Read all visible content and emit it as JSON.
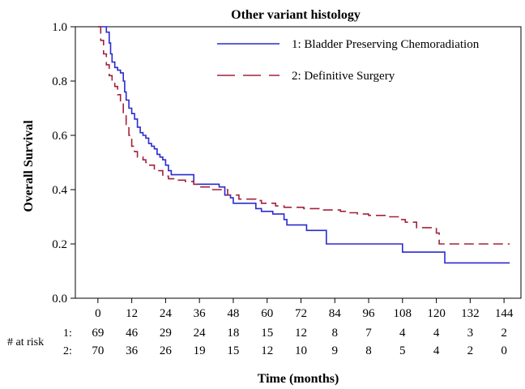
{
  "chart_data": {
    "type": "line",
    "title": "Other variant histology",
    "xlabel": "Time (months)",
    "ylabel": "Overall Survival",
    "xlim": [
      -8,
      150
    ],
    "ylim": [
      0,
      1.0
    ],
    "x_ticks": [
      0,
      12,
      24,
      36,
      48,
      60,
      72,
      84,
      96,
      108,
      120,
      132,
      144
    ],
    "y_ticks": [
      0.0,
      0.2,
      0.4,
      0.6,
      0.8,
      1.0
    ],
    "y_tick_labels": [
      "0.0",
      "0.2",
      "0.4",
      "0.6",
      "0.8",
      "1.0"
    ],
    "legend_position": "top-right",
    "grid": false,
    "series": [
      {
        "name": "1: Bladder Preserving Chemoradiation",
        "color": "#2a2ad0",
        "dash": "solid",
        "points": [
          [
            0,
            1.0
          ],
          [
            2.5,
            1.0
          ],
          [
            3,
            0.98
          ],
          [
            4,
            0.94
          ],
          [
            4.5,
            0.9
          ],
          [
            5,
            0.87
          ],
          [
            6,
            0.85
          ],
          [
            7,
            0.84
          ],
          [
            8,
            0.83
          ],
          [
            9,
            0.8
          ],
          [
            9.5,
            0.76
          ],
          [
            10,
            0.73
          ],
          [
            11,
            0.7
          ],
          [
            12,
            0.68
          ],
          [
            13,
            0.66
          ],
          [
            14,
            0.63
          ],
          [
            15,
            0.61
          ],
          [
            16,
            0.6
          ],
          [
            17,
            0.59
          ],
          [
            18,
            0.57
          ],
          [
            19,
            0.56
          ],
          [
            20,
            0.55
          ],
          [
            21,
            0.53
          ],
          [
            22,
            0.52
          ],
          [
            23,
            0.51
          ],
          [
            24,
            0.49
          ],
          [
            25,
            0.47
          ],
          [
            26,
            0.455
          ],
          [
            28,
            0.455
          ],
          [
            32,
            0.455
          ],
          [
            33,
            0.455
          ],
          [
            34,
            0.42
          ],
          [
            42,
            0.42
          ],
          [
            43,
            0.41
          ],
          [
            45,
            0.38
          ],
          [
            47,
            0.37
          ],
          [
            48,
            0.35
          ],
          [
            55,
            0.35
          ],
          [
            56,
            0.33
          ],
          [
            58,
            0.32
          ],
          [
            62,
            0.31
          ],
          [
            66,
            0.29
          ],
          [
            67,
            0.27
          ],
          [
            73,
            0.27
          ],
          [
            74,
            0.25
          ],
          [
            80,
            0.25
          ],
          [
            81,
            0.2
          ],
          [
            107,
            0.2
          ],
          [
            108,
            0.17
          ],
          [
            122,
            0.17
          ],
          [
            123,
            0.13
          ],
          [
            146,
            0.13
          ]
        ]
      },
      {
        "name": "2: Definitive Surgery",
        "color": "#a3213a",
        "dash": "dashed",
        "points": [
          [
            0,
            1.0
          ],
          [
            1,
            0.95
          ],
          [
            2,
            0.9
          ],
          [
            3,
            0.86
          ],
          [
            4,
            0.82
          ],
          [
            5,
            0.8
          ],
          [
            6,
            0.78
          ],
          [
            7,
            0.75
          ],
          [
            8,
            0.72
          ],
          [
            9,
            0.68
          ],
          [
            10,
            0.64
          ],
          [
            11,
            0.6
          ],
          [
            12,
            0.56
          ],
          [
            13,
            0.54
          ],
          [
            14,
            0.52
          ],
          [
            16,
            0.51
          ],
          [
            17,
            0.5
          ],
          [
            18,
            0.49
          ],
          [
            20,
            0.47
          ],
          [
            23,
            0.45
          ],
          [
            25,
            0.44
          ],
          [
            28,
            0.435
          ],
          [
            31,
            0.43
          ],
          [
            34,
            0.42
          ],
          [
            36,
            0.41
          ],
          [
            40,
            0.4
          ],
          [
            46,
            0.38
          ],
          [
            50,
            0.365
          ],
          [
            56,
            0.36
          ],
          [
            58,
            0.35
          ],
          [
            63,
            0.34
          ],
          [
            66,
            0.335
          ],
          [
            73,
            0.33
          ],
          [
            80,
            0.325
          ],
          [
            86,
            0.32
          ],
          [
            89,
            0.315
          ],
          [
            92,
            0.31
          ],
          [
            96,
            0.305
          ],
          [
            103,
            0.3
          ],
          [
            107,
            0.29
          ],
          [
            109,
            0.28
          ],
          [
            113,
            0.26
          ],
          [
            119,
            0.26
          ],
          [
            120,
            0.24
          ],
          [
            121,
            0.2
          ],
          [
            146,
            0.2
          ]
        ]
      }
    ],
    "at_risk": {
      "label": "# at risk",
      "rows": [
        {
          "prefix": "1:",
          "values": [
            "69",
            "46",
            "29",
            "24",
            "18",
            "15",
            "12",
            "8",
            "7",
            "4",
            "4",
            "3",
            "2"
          ]
        },
        {
          "prefix": "2:",
          "values": [
            "70",
            "36",
            "26",
            "19",
            "15",
            "12",
            "10",
            "9",
            "8",
            "5",
            "4",
            "2",
            "0"
          ]
        }
      ]
    }
  }
}
